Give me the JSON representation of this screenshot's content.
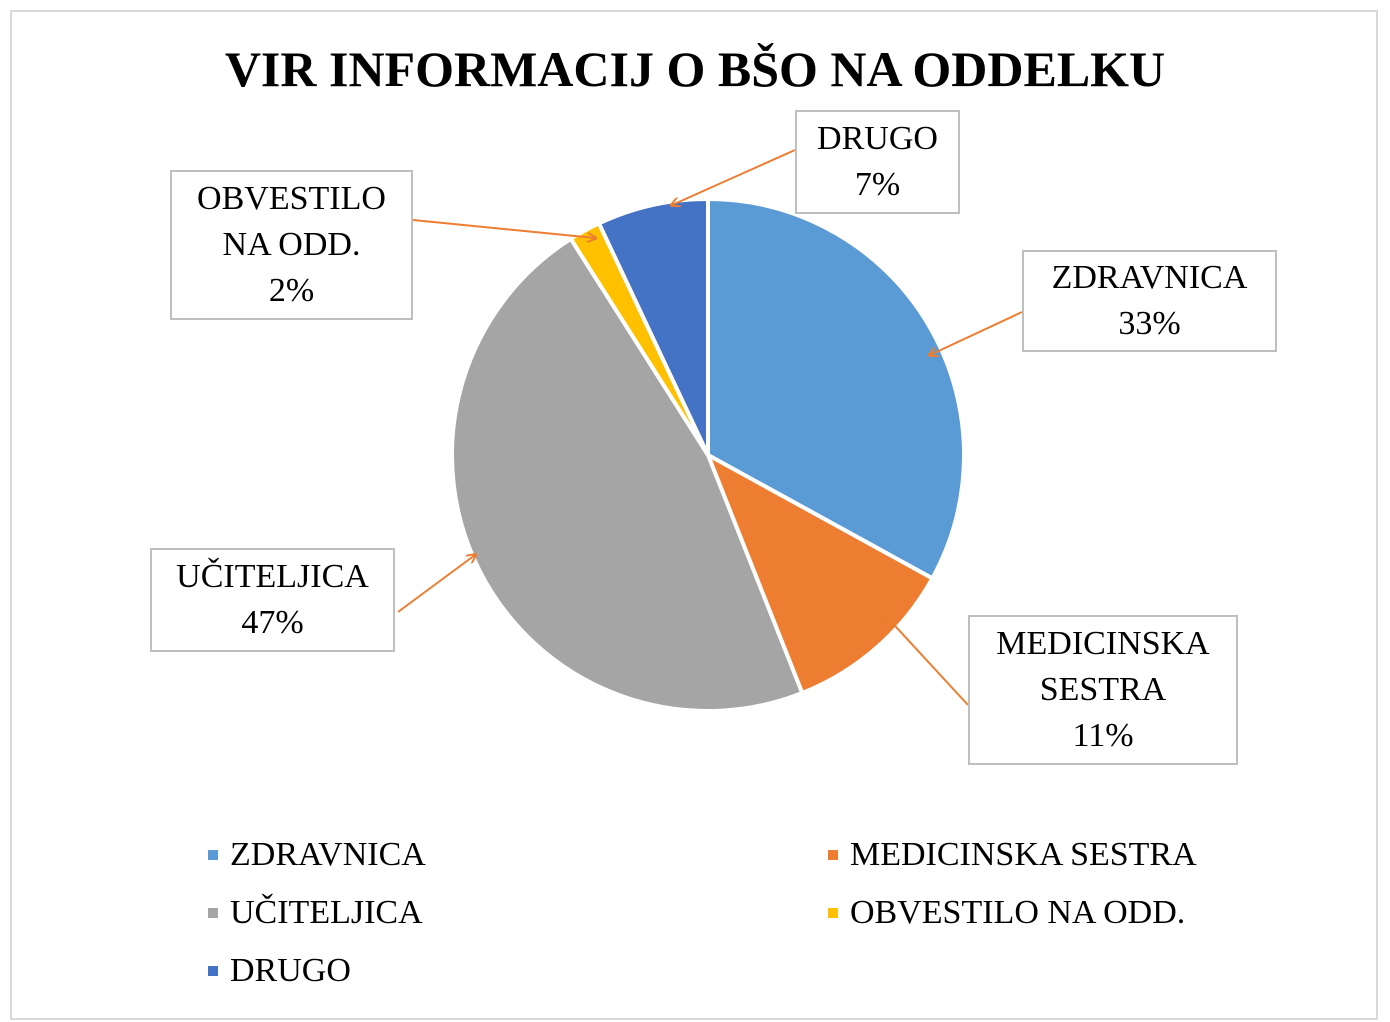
{
  "chart_data": {
    "type": "pie",
    "title": "VIR INFORMACIJ O BŠO NA ODDELKU",
    "categories": [
      "ZDRAVNICA",
      "MEDICINSKA SESTRA",
      "UČITELJICA",
      "OBVESTILO NA ODD.",
      "DRUGO"
    ],
    "values": [
      33,
      11,
      47,
      2,
      7
    ],
    "value_labels": [
      "33%",
      "11%",
      "47%",
      "2%",
      "7%"
    ],
    "colors": [
      "#5b9bd5",
      "#ed7d31",
      "#a5a5a5",
      "#ffc000",
      "#4472c4"
    ],
    "legend": "bottom"
  }
}
